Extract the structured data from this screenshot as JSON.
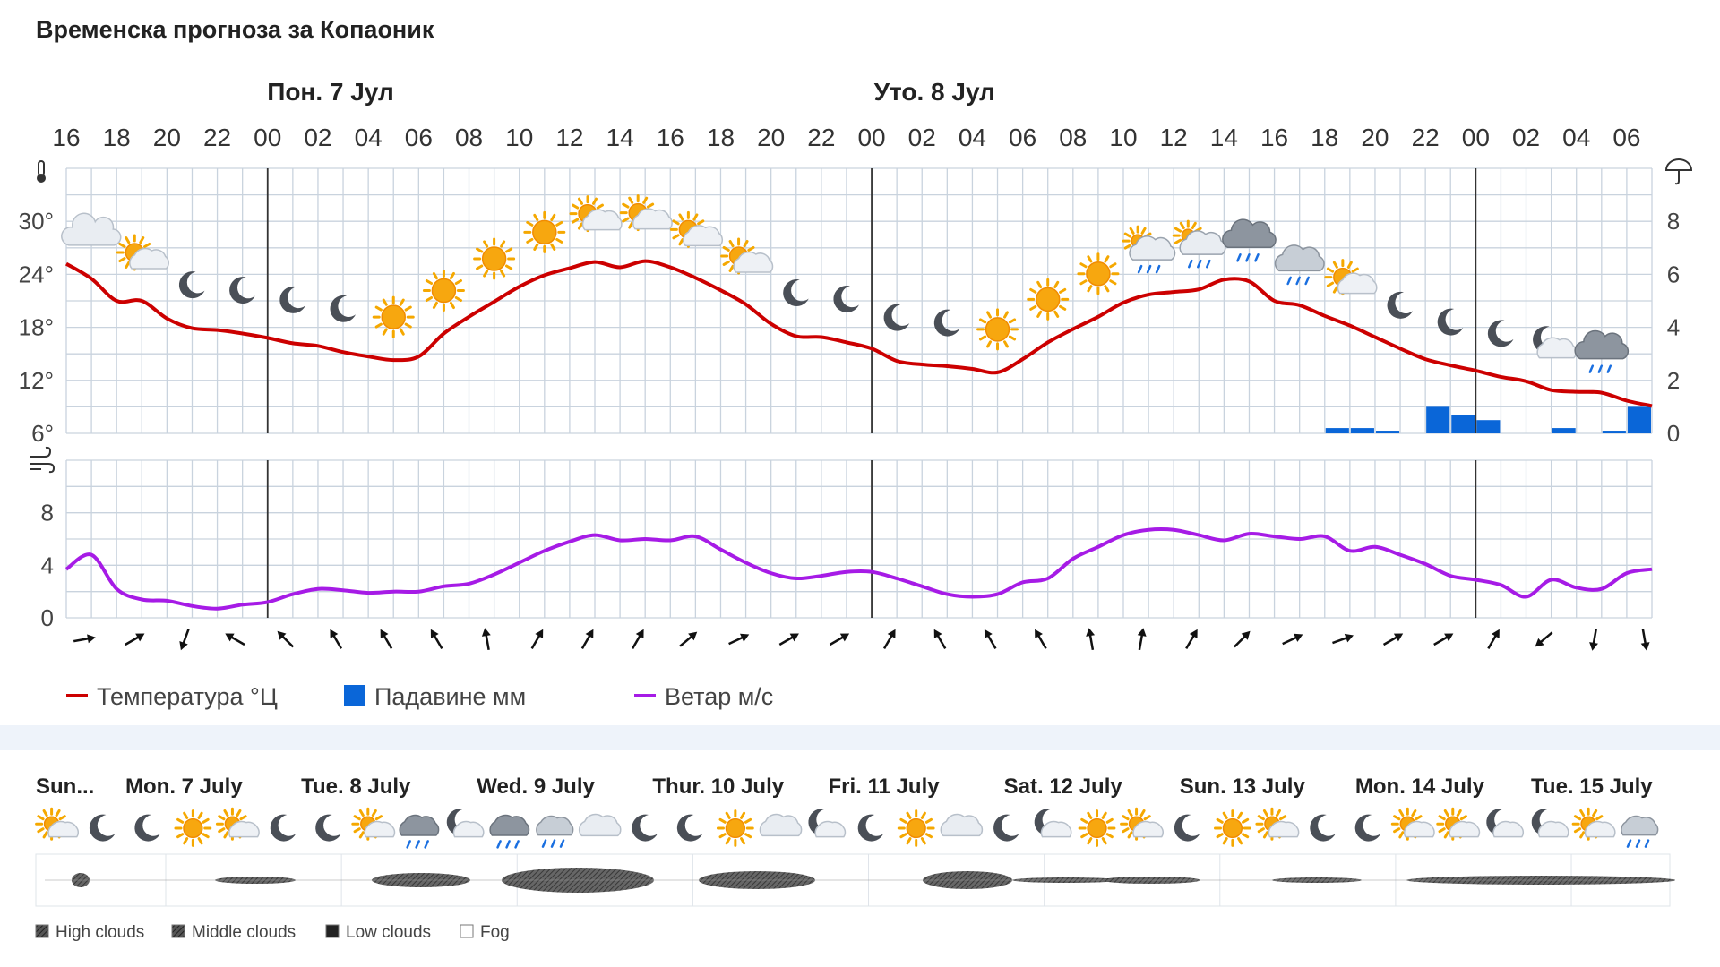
{
  "title": "Временска прогноза за Копаоник",
  "colors": {
    "temperature": "#cc0000",
    "precipitation": "#0a66d8",
    "wind": "#a61be6",
    "grid": "#c9d3de",
    "day_line": "#333333",
    "panel_bg": "#eef3fa"
  },
  "chart_data": [
    {
      "type": "line",
      "title": "Временска прогноза за Копаоник",
      "days": [
        {
          "label": "Пон. 7 Јул",
          "hour": 0
        },
        {
          "label": "Уто. 8 Јул",
          "hour": 24
        }
      ],
      "hour_labels": [
        "16",
        "18",
        "20",
        "22",
        "00",
        "02",
        "04",
        "06",
        "08",
        "10",
        "12",
        "14",
        "16",
        "18",
        "20",
        "22",
        "00",
        "02",
        "04",
        "06",
        "08",
        "10",
        "12",
        "14",
        "16",
        "18",
        "20",
        "22",
        "00",
        "02",
        "04",
        "06"
      ],
      "x_start_hour": -8,
      "x_end_hour": 55,
      "y_left": {
        "ticks": [
          6,
          12,
          18,
          24,
          30
        ],
        "tick_labels": [
          "6°",
          "12°",
          "18°",
          "24°",
          "30°"
        ],
        "range": [
          6,
          36
        ],
        "icon": "thermometer-icon"
      },
      "y_right": {
        "ticks": [
          0,
          2,
          4,
          6,
          8
        ],
        "range": [
          0,
          10
        ],
        "icon": "umbrella-icon"
      },
      "series": [
        {
          "name": "Температура °Ц",
          "unit": "°C",
          "x_hours": [
            -8,
            -7,
            -6,
            -5,
            -4,
            -3,
            -2,
            -1,
            0,
            1,
            2,
            3,
            4,
            5,
            6,
            7,
            8,
            9,
            10,
            11,
            12,
            13,
            14,
            15,
            16,
            17,
            18,
            19,
            20,
            21,
            22,
            23,
            24,
            25,
            26,
            27,
            28,
            29,
            30,
            31,
            32,
            33,
            34,
            35,
            36,
            37,
            38,
            39,
            40,
            41,
            42,
            43,
            44,
            45,
            46,
            47,
            48,
            49,
            50,
            51,
            52,
            53,
            54,
            55
          ],
          "values": [
            25.2,
            23.5,
            21,
            21,
            19,
            17.9,
            17.7,
            17.3,
            16.8,
            16.2,
            15.9,
            15.2,
            14.7,
            14.3,
            14.7,
            17.3,
            19.2,
            20.9,
            22.6,
            23.9,
            24.7,
            25.4,
            24.8,
            25.5,
            24.8,
            23.6,
            22.2,
            20.6,
            18.4,
            17,
            16.9,
            16.3,
            15.6,
            14.2,
            13.8,
            13.6,
            13.3,
            12.9,
            14.4,
            16.3,
            17.8,
            19.2,
            20.8,
            21.7,
            22,
            22.3,
            23.4,
            23.2,
            21,
            20.5,
            19.3,
            18.2,
            16.9,
            15.6,
            14.4,
            13.7,
            13.1,
            12.4,
            11.9,
            10.9,
            10.7,
            10.6,
            9.7,
            9.1
          ]
        },
        {
          "name": "Падавине мм",
          "unit": "mm",
          "bars": [
            {
              "hour": 43,
              "value": 0.2
            },
            {
              "hour": 44,
              "value": 0.2
            },
            {
              "hour": 45,
              "value": 0.1
            },
            {
              "hour": 47,
              "value": 1.0
            },
            {
              "hour": 48,
              "value": 0.7
            },
            {
              "hour": 49,
              "value": 0.5
            },
            {
              "hour": 52,
              "value": 0.2
            },
            {
              "hour": 54,
              "value": 0.1
            },
            {
              "hour": 55,
              "value": 1.0
            },
            {
              "hour": 56,
              "value": 0.5
            }
          ]
        }
      ],
      "weather_icons": [
        {
          "hour": -7,
          "icon": "cloud-icon"
        },
        {
          "hour": -5,
          "icon": "partly-cloudy-icon"
        },
        {
          "hour": -3,
          "icon": "moon-icon"
        },
        {
          "hour": -1,
          "icon": "moon-icon"
        },
        {
          "hour": 1,
          "icon": "moon-icon"
        },
        {
          "hour": 3,
          "icon": "moon-icon"
        },
        {
          "hour": 5,
          "icon": "sun-icon"
        },
        {
          "hour": 7,
          "icon": "sun-icon"
        },
        {
          "hour": 9,
          "icon": "sun-icon"
        },
        {
          "hour": 11,
          "icon": "sun-icon"
        },
        {
          "hour": 13,
          "icon": "partly-cloudy-icon"
        },
        {
          "hour": 15,
          "icon": "partly-cloudy-icon"
        },
        {
          "hour": 17,
          "icon": "partly-cloudy-icon"
        },
        {
          "hour": 19,
          "icon": "partly-cloudy-icon"
        },
        {
          "hour": 21,
          "icon": "moon-icon"
        },
        {
          "hour": 23,
          "icon": "moon-icon"
        },
        {
          "hour": 25,
          "icon": "moon-icon"
        },
        {
          "hour": 27,
          "icon": "moon-icon"
        },
        {
          "hour": 29,
          "icon": "sun-icon"
        },
        {
          "hour": 31,
          "icon": "sun-icon"
        },
        {
          "hour": 33,
          "icon": "sun-icon"
        },
        {
          "hour": 35,
          "icon": "light-rain-sun-icon"
        },
        {
          "hour": 37,
          "icon": "light-rain-sun-icon"
        },
        {
          "hour": 39,
          "icon": "rain-icon"
        },
        {
          "hour": 41,
          "icon": "light-rain-icon"
        },
        {
          "hour": 43,
          "icon": "partly-cloudy-icon"
        },
        {
          "hour": 45,
          "icon": "moon-icon"
        },
        {
          "hour": 47,
          "icon": "moon-icon"
        },
        {
          "hour": 49,
          "icon": "moon-icon"
        },
        {
          "hour": 51,
          "icon": "cloudy-night-icon"
        },
        {
          "hour": 53,
          "icon": "rain-icon"
        }
      ]
    },
    {
      "type": "line",
      "y_left": {
        "ticks": [
          0,
          4,
          8
        ],
        "tick_labels": [
          "0",
          "4",
          "8"
        ],
        "range": [
          0,
          12
        ],
        "icon": "wind-icon"
      },
      "series": [
        {
          "name": "Ветар м/с",
          "unit": "m/s",
          "x_hours": [
            -8,
            -7,
            -6,
            -5,
            -4,
            -3,
            -2,
            -1,
            0,
            1,
            2,
            3,
            4,
            5,
            6,
            7,
            8,
            9,
            10,
            11,
            12,
            13,
            14,
            15,
            16,
            17,
            18,
            19,
            20,
            21,
            22,
            23,
            24,
            25,
            26,
            27,
            28,
            29,
            30,
            31,
            32,
            33,
            34,
            35,
            36,
            37,
            38,
            39,
            40,
            41,
            42,
            43,
            44,
            45,
            46,
            47,
            48,
            49,
            50,
            51,
            52,
            53,
            54,
            55
          ],
          "values": [
            3.7,
            4.8,
            2.2,
            1.4,
            1.3,
            0.9,
            0.7,
            1.0,
            1.2,
            1.8,
            2.2,
            2.1,
            1.9,
            2.0,
            2.0,
            2.4,
            2.6,
            3.3,
            4.2,
            5.1,
            5.8,
            6.3,
            5.9,
            6.0,
            5.9,
            6.2,
            5.2,
            4.2,
            3.4,
            3.0,
            3.2,
            3.5,
            3.5,
            3.0,
            2.4,
            1.8,
            1.6,
            1.8,
            2.7,
            3.0,
            4.5,
            5.4,
            6.3,
            6.7,
            6.7,
            6.3,
            5.9,
            6.4,
            6.2,
            6.0,
            6.2,
            5.1,
            5.4,
            4.8,
            4.1,
            3.2,
            2.9,
            2.5,
            1.6,
            2.9,
            2.3,
            2.2,
            3.4,
            3.7
          ]
        }
      ],
      "wind_direction_deg": [
        80,
        60,
        200,
        300,
        315,
        330,
        330,
        330,
        350,
        30,
        30,
        30,
        50,
        65,
        60,
        60,
        30,
        330,
        330,
        330,
        350,
        10,
        30,
        45,
        65,
        70,
        60,
        60,
        30,
        230,
        190,
        170
      ]
    }
  ],
  "legend": [
    {
      "label": "Температура °Ц",
      "color": "#cc0000",
      "shape": "line"
    },
    {
      "label": "Падавине мм",
      "color": "#0a66d8",
      "shape": "square"
    },
    {
      "label": "Ветар м/с",
      "color": "#a61be6",
      "shape": "line"
    }
  ],
  "weekly": {
    "days": [
      "Sun...",
      "Mon. 7 July",
      "Tue. 8 July",
      "Wed. 9 July",
      "Thur. 10 July",
      "Fri. 11 July",
      "Sat. 12 July",
      "Sun. 13 July",
      "Mon. 14 July",
      "Tue. 15 July"
    ],
    "icons": [
      "partly-cloudy-icon",
      "moon-icon",
      "moon-icon",
      "sun-icon",
      "partly-cloudy-icon",
      "moon-icon",
      "moon-icon",
      "partly-cloudy-icon",
      "rain-icon",
      "cloudy-night-icon",
      "rain-icon",
      "light-rain-icon",
      "cloud-icon",
      "moon-icon",
      "moon-icon",
      "sun-icon",
      "cloud-icon",
      "cloudy-night-icon",
      "moon-icon",
      "sun-icon",
      "cloud-icon",
      "moon-icon",
      "cloudy-night-icon",
      "sun-icon",
      "partly-cloudy-icon",
      "moon-icon",
      "sun-icon",
      "partly-cloudy-icon",
      "moon-icon",
      "moon-icon",
      "partly-cloudy-icon",
      "partly-cloudy-icon",
      "cloudy-night-icon",
      "cloudy-night-icon",
      "partly-cloudy-icon",
      "light-rain-icon"
    ],
    "cloud_legend": [
      {
        "label": "High clouds",
        "icon": "high-clouds-icon"
      },
      {
        "label": "Middle clouds",
        "icon": "middle-clouds-icon"
      },
      {
        "label": "Low clouds",
        "icon": "low-clouds-icon"
      },
      {
        "label": "Fog",
        "icon": "fog-icon"
      }
    ]
  }
}
